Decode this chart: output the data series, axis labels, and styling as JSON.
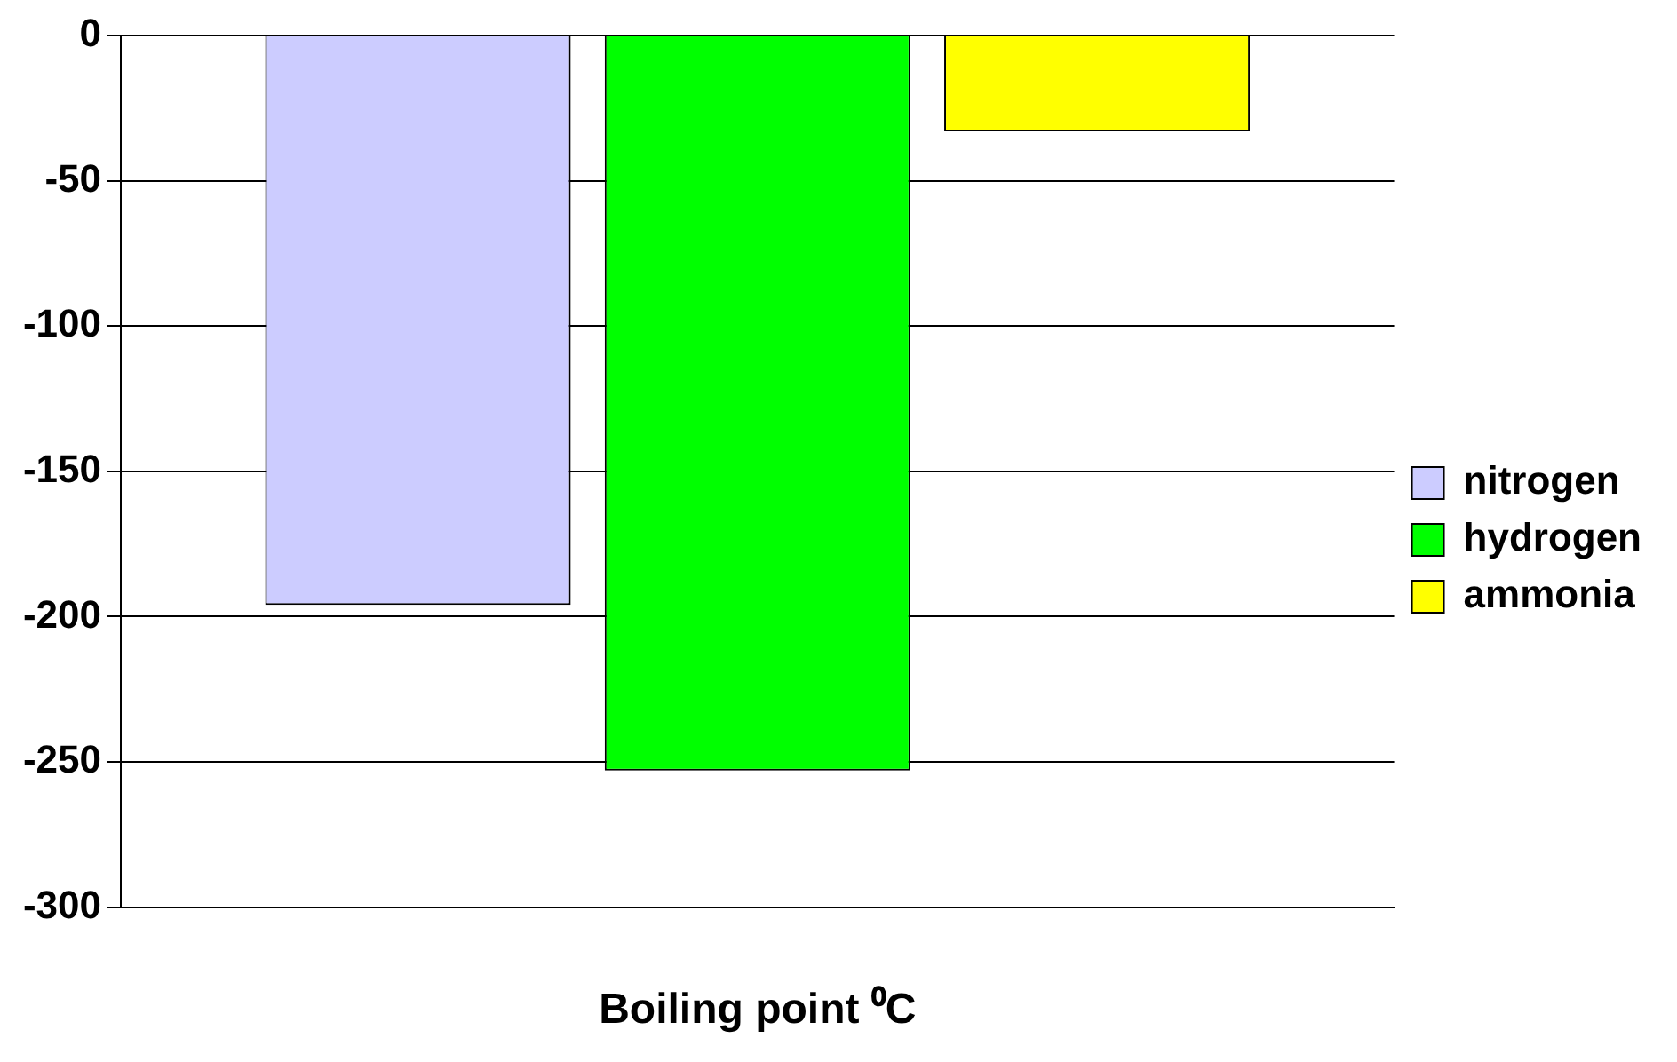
{
  "chart_data": {
    "type": "bar",
    "xlabel": "Boiling point ⁰C",
    "categories": [
      null
    ],
    "series": [
      {
        "name": "nitrogen",
        "color": "#ccccff",
        "values": [
          -196
        ]
      },
      {
        "name": "hydrogen",
        "color": "#00ff00",
        "values": [
          -253
        ]
      },
      {
        "name": "ammonia",
        "color": "#ffff00",
        "values": [
          -33
        ]
      }
    ],
    "ylim": [
      -300,
      0
    ],
    "yticks": [
      0,
      -50,
      -100,
      -150,
      -200,
      -250,
      -300
    ],
    "grid": "y",
    "legend": "right"
  }
}
